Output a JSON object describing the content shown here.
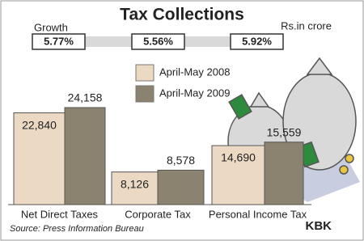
{
  "chart_data": {
    "type": "bar",
    "title": "Tax Collections",
    "unit_note": "Rs.in crore",
    "growth": {
      "label": "Growth",
      "values": [
        5.77,
        5.56,
        5.92
      ],
      "value_labels": [
        "5.77%",
        "5.56%",
        "5.92%"
      ]
    },
    "categories": [
      "Net Direct Taxes",
      "Corporate Tax",
      "Personal Income Tax"
    ],
    "series": [
      {
        "name": "April-May 2008",
        "color": "#ecd9c4",
        "values": [
          22840,
          8126,
          14690
        ],
        "value_labels": [
          "22,840",
          "8,126",
          "14,690"
        ]
      },
      {
        "name": "April-May 2009",
        "color": "#8b826f",
        "values": [
          24158,
          8578,
          15559
        ],
        "value_labels": [
          "24,158",
          "8,578",
          "15,559"
        ]
      }
    ],
    "source": "Source: Press Information Bureau",
    "credit": "KBK"
  }
}
